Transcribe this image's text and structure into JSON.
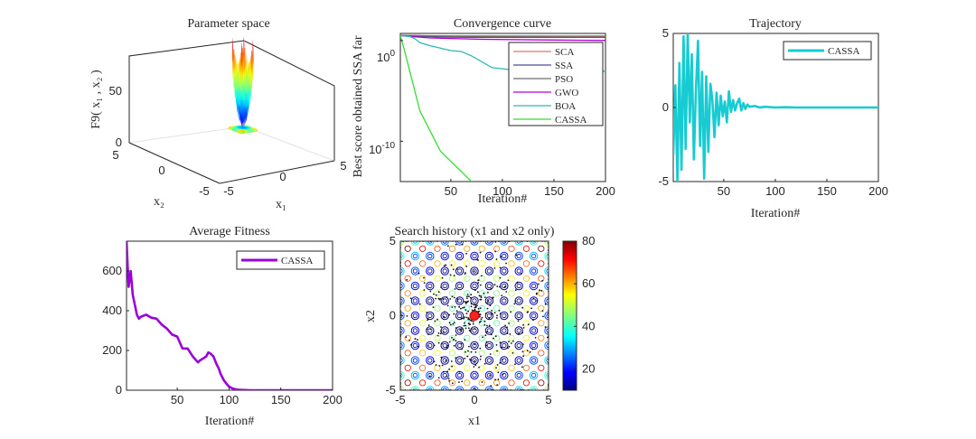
{
  "chart_data": [
    {
      "type": "surface",
      "title": "Parameter space",
      "zlabel": "F9( x₁ , x₂ )",
      "xlabel": "x₁",
      "ylabel": "x₂",
      "xlim": [
        -5,
        5
      ],
      "ylim": [
        -5,
        5
      ],
      "zlim": [
        0,
        80
      ],
      "xticks": [
        "-5",
        "0",
        "5"
      ],
      "yticks": [
        "-5",
        "0",
        "5"
      ],
      "zticks": [
        "0",
        "50"
      ],
      "colormap": "jet",
      "grid": true
    },
    {
      "type": "line",
      "title": "Convergence curve",
      "xlabel": "Iteration#",
      "ylabel": "Best score obtained SSA far",
      "yscale": "log",
      "xlim": [
        1,
        200
      ],
      "ylim": [
        1e-14,
        5
      ],
      "xticks": [
        "50",
        "100",
        "150",
        "200"
      ],
      "yticks": [
        {
          "base": "10",
          "exp": "0"
        },
        {
          "base": "10",
          "exp": "-10"
        }
      ],
      "legend_position": "top-right",
      "series": [
        {
          "name": "SCA",
          "color": "#e8706a",
          "x": [
            1,
            20,
            50,
            200
          ],
          "y": [
            3.2,
            3.0,
            2.9,
            2.8
          ]
        },
        {
          "name": "SSA",
          "color": "#4a4a9c",
          "x": [
            1,
            40,
            70,
            200
          ],
          "y": [
            3.0,
            2.2,
            2.0,
            2.0
          ]
        },
        {
          "name": "PSO",
          "color": "#6c6c6c",
          "x": [
            1,
            15,
            30,
            60,
            100,
            200
          ],
          "y": [
            3.3,
            3.1,
            2.8,
            2.5,
            2.4,
            2.3
          ]
        },
        {
          "name": "GWO",
          "color": "#b000d0",
          "x": [
            1,
            10,
            30,
            80,
            150,
            200
          ],
          "y": [
            3.0,
            2.5,
            1.8,
            1.3,
            1.1,
            1.0
          ]
        },
        {
          "name": "BOA",
          "color": "#2cbab0",
          "x": [
            1,
            10,
            15,
            20,
            30,
            50,
            60,
            70,
            90,
            110,
            150,
            170,
            200
          ],
          "y": [
            3.0,
            2.5,
            1.5,
            0.6,
            0.3,
            0.1,
            0.08,
            0.03,
            0.002,
            0.0012,
            0.001,
            0.0009,
            0.0009
          ]
        },
        {
          "name": "CASSA",
          "color": "#33dd33",
          "x": [
            1,
            5,
            10,
            15,
            20,
            25,
            30,
            35,
            40,
            50,
            60,
            70,
            75
          ],
          "y": [
            3.0,
            0.1,
            0.001,
            1e-05,
            1e-07,
            1e-08,
            1e-09,
            1e-10,
            1e-11,
            1e-12,
            1e-13,
            1e-14,
            2e-15
          ]
        }
      ]
    },
    {
      "type": "line",
      "title": "Trajectory",
      "xlabel": "Iteration#",
      "ylabel": "",
      "xlim": [
        1,
        200
      ],
      "ylim": [
        -5,
        5
      ],
      "xticks": [
        "50",
        "100",
        "150",
        "200"
      ],
      "yticks": [
        "-5",
        "0",
        "5"
      ],
      "legend_position": "top-right",
      "series": [
        {
          "name": "CASSA",
          "color": "#17cbd2",
          "x": [
            1,
            3,
            5,
            7,
            9,
            11,
            13,
            15,
            17,
            19,
            21,
            23,
            25,
            27,
            29,
            31,
            33,
            35,
            37,
            39,
            41,
            43,
            45,
            47,
            49,
            51,
            53,
            55,
            57,
            59,
            61,
            63,
            65,
            67,
            69,
            71,
            73,
            75,
            80,
            85,
            90,
            100,
            110,
            120,
            140,
            160,
            200
          ],
          "y": [
            -3.2,
            1.5,
            -5.0,
            3.0,
            -4.2,
            4.8,
            -2.8,
            5.0,
            -1.0,
            3.6,
            -3.5,
            1.2,
            4.5,
            -2.6,
            2.4,
            -4.8,
            2.1,
            -3.0,
            1.6,
            0.5,
            -2.0,
            1.0,
            -1.2,
            0.8,
            -0.6,
            0.4,
            -1.0,
            1.1,
            -0.3,
            0.5,
            -0.2,
            0.3,
            0.6,
            -0.2,
            0.3,
            -0.1,
            0.2,
            0.05,
            0.1,
            0.0,
            0.05,
            0.0,
            0.02,
            0.0,
            0.0,
            0.0,
            0.0
          ]
        }
      ]
    },
    {
      "type": "line",
      "title": "Average Fitness",
      "xlabel": "Iteration#",
      "ylabel": "",
      "xlim": [
        1,
        200
      ],
      "ylim": [
        0,
        750
      ],
      "xticks": [
        "50",
        "100",
        "150",
        "200"
      ],
      "yticks": [
        "0",
        "200",
        "400",
        "600"
      ],
      "legend_position": "top-right",
      "series": [
        {
          "name": "CASSA",
          "color": "#9b00d9",
          "x": [
            1,
            3,
            5,
            7,
            9,
            11,
            13,
            15,
            20,
            25,
            30,
            35,
            40,
            45,
            50,
            55,
            60,
            65,
            70,
            72,
            75,
            78,
            80,
            82,
            85,
            88,
            90,
            92,
            95,
            98,
            100,
            103,
            106,
            110,
            120,
            140,
            160,
            200
          ],
          "y": [
            750,
            520,
            600,
            480,
            430,
            380,
            360,
            370,
            380,
            365,
            360,
            330,
            310,
            280,
            270,
            210,
            210,
            170,
            140,
            150,
            160,
            170,
            190,
            185,
            170,
            130,
            110,
            80,
            50,
            30,
            18,
            10,
            5,
            2,
            0,
            0,
            0,
            0
          ]
        }
      ]
    },
    {
      "type": "scatter",
      "title": "Search history (x1 and x2 only)",
      "xlabel": "x1",
      "ylabel": "x2",
      "xlim": [
        -5,
        5
      ],
      "ylim": [
        -5,
        5
      ],
      "xticks": [
        "-5",
        "0",
        "5"
      ],
      "yticks": [
        "-5",
        "0",
        "5"
      ],
      "best_point": {
        "x": 0,
        "y": 0
      },
      "colorbar": {
        "min": 10,
        "max": 80,
        "ticks": [
          "20",
          "40",
          "60",
          "80"
        ],
        "colormap": "jet"
      }
    }
  ]
}
